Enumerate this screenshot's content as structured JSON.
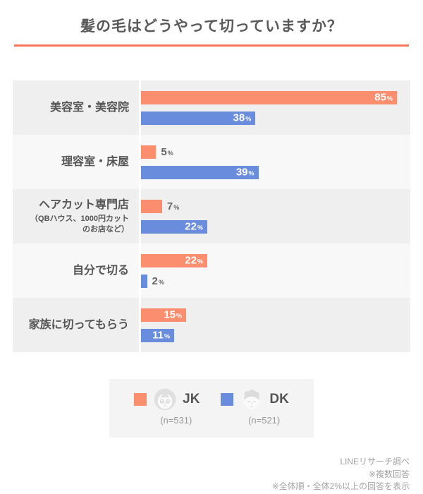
{
  "title": "髪の毛はどうやって切っていますか？",
  "colors": {
    "title_text": "#595959",
    "title_underline": "#f8775a",
    "jk_orange": "#fb8e6e",
    "dk_blue": "#6a8cdc",
    "row_stripe_dark": "#efefef",
    "row_stripe_light": "#f8f8f8",
    "value_inside": "#ffffff",
    "value_outside": "#666666",
    "footer_text": "#a3a3a3",
    "legend_bg": "#f4f4f4"
  },
  "chart_data": {
    "type": "bar",
    "orientation": "horizontal",
    "unit": "%",
    "title": "髪の毛はどうやって切っていますか？",
    "categories": [
      {
        "main": "美容室・美容院",
        "sub": ""
      },
      {
        "main": "理容室・床屋",
        "sub": ""
      },
      {
        "main": "ヘアカット専門店",
        "sub": "（QBハウス、1000円カット\nのお店など）"
      },
      {
        "main": "自分で切る",
        "sub": ""
      },
      {
        "main": "家族に切ってもらう",
        "sub": ""
      }
    ],
    "series": [
      {
        "name": "JK",
        "sample": "(n=531)",
        "color": "#fb8e6e",
        "values": [
          85,
          5,
          7,
          22,
          15
        ]
      },
      {
        "name": "DK",
        "sample": "(n=521)",
        "color": "#6a8cdc",
        "values": [
          38,
          39,
          22,
          2,
          11
        ]
      }
    ],
    "xlim": [
      0,
      90
    ],
    "grid": false,
    "value_labels": true,
    "value_label_rule": "inside bar in white when value >= 10, outside in gray otherwise",
    "legend_position": "bottom"
  },
  "legend": {
    "items": [
      {
        "label": "JK",
        "n_label": "(n=531)",
        "icon": "girl-face-icon",
        "color": "#fb8e6e"
      },
      {
        "label": "DK",
        "n_label": "(n=521)",
        "icon": "boy-face-icon",
        "color": "#6a8cdc"
      }
    ]
  },
  "footer": {
    "lines": [
      "LINEリサーチ調べ",
      "※複数回答",
      "※全体順・全体2%以上の回答を表示"
    ]
  }
}
